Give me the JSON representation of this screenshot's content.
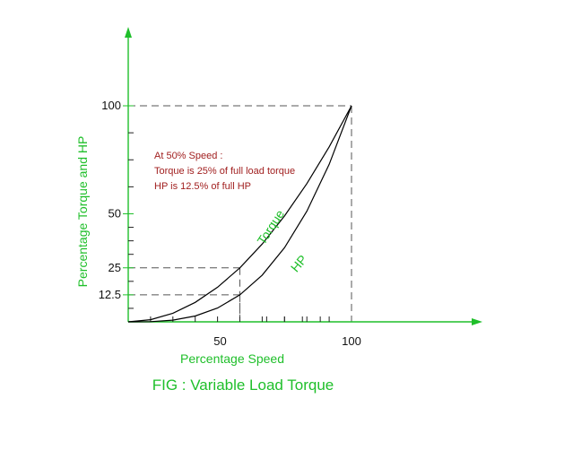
{
  "chart_data": {
    "type": "line",
    "caption": "FIG : Variable Load Torque",
    "xlabel": "Percentage Speed",
    "ylabel": "Percentage Torque and HP",
    "xlim": [
      0,
      120
    ],
    "ylim": [
      0,
      100
    ],
    "x_ticks": [
      50,
      100
    ],
    "y_ticks": [
      12.5,
      25,
      50,
      100
    ],
    "x_tick_labels": [
      "50",
      "100"
    ],
    "y_tick_labels": [
      "12.5",
      "25",
      "50",
      "100"
    ],
    "series": [
      {
        "name": "Torque",
        "color": "#000000",
        "x": [
          0,
          10,
          20,
          30,
          40,
          50,
          60,
          70,
          80,
          90,
          100
        ],
        "y": [
          0,
          1,
          4,
          9,
          16,
          25,
          36,
          49,
          64,
          81,
          100
        ]
      },
      {
        "name": "HP",
        "color": "#000000",
        "x": [
          0,
          10,
          20,
          30,
          40,
          50,
          60,
          70,
          80,
          90,
          100
        ],
        "y": [
          0,
          0.1,
          0.8,
          2.7,
          6.4,
          12.5,
          21.6,
          34.3,
          51.2,
          72.9,
          100
        ]
      }
    ],
    "reference_lines": [
      {
        "x": 50,
        "y": 25
      },
      {
        "x": 50,
        "y": 12.5
      },
      {
        "x": 100,
        "y": 100
      }
    ],
    "annotation": {
      "lines": [
        "At 50% Speed :",
        "Torque is 25% of full load torque",
        "HP is 12.5% of full HP"
      ],
      "color": "#a11f1f"
    },
    "axis_color": "#1fbf2a",
    "label_color": "#1fbf2a",
    "grid": false
  }
}
